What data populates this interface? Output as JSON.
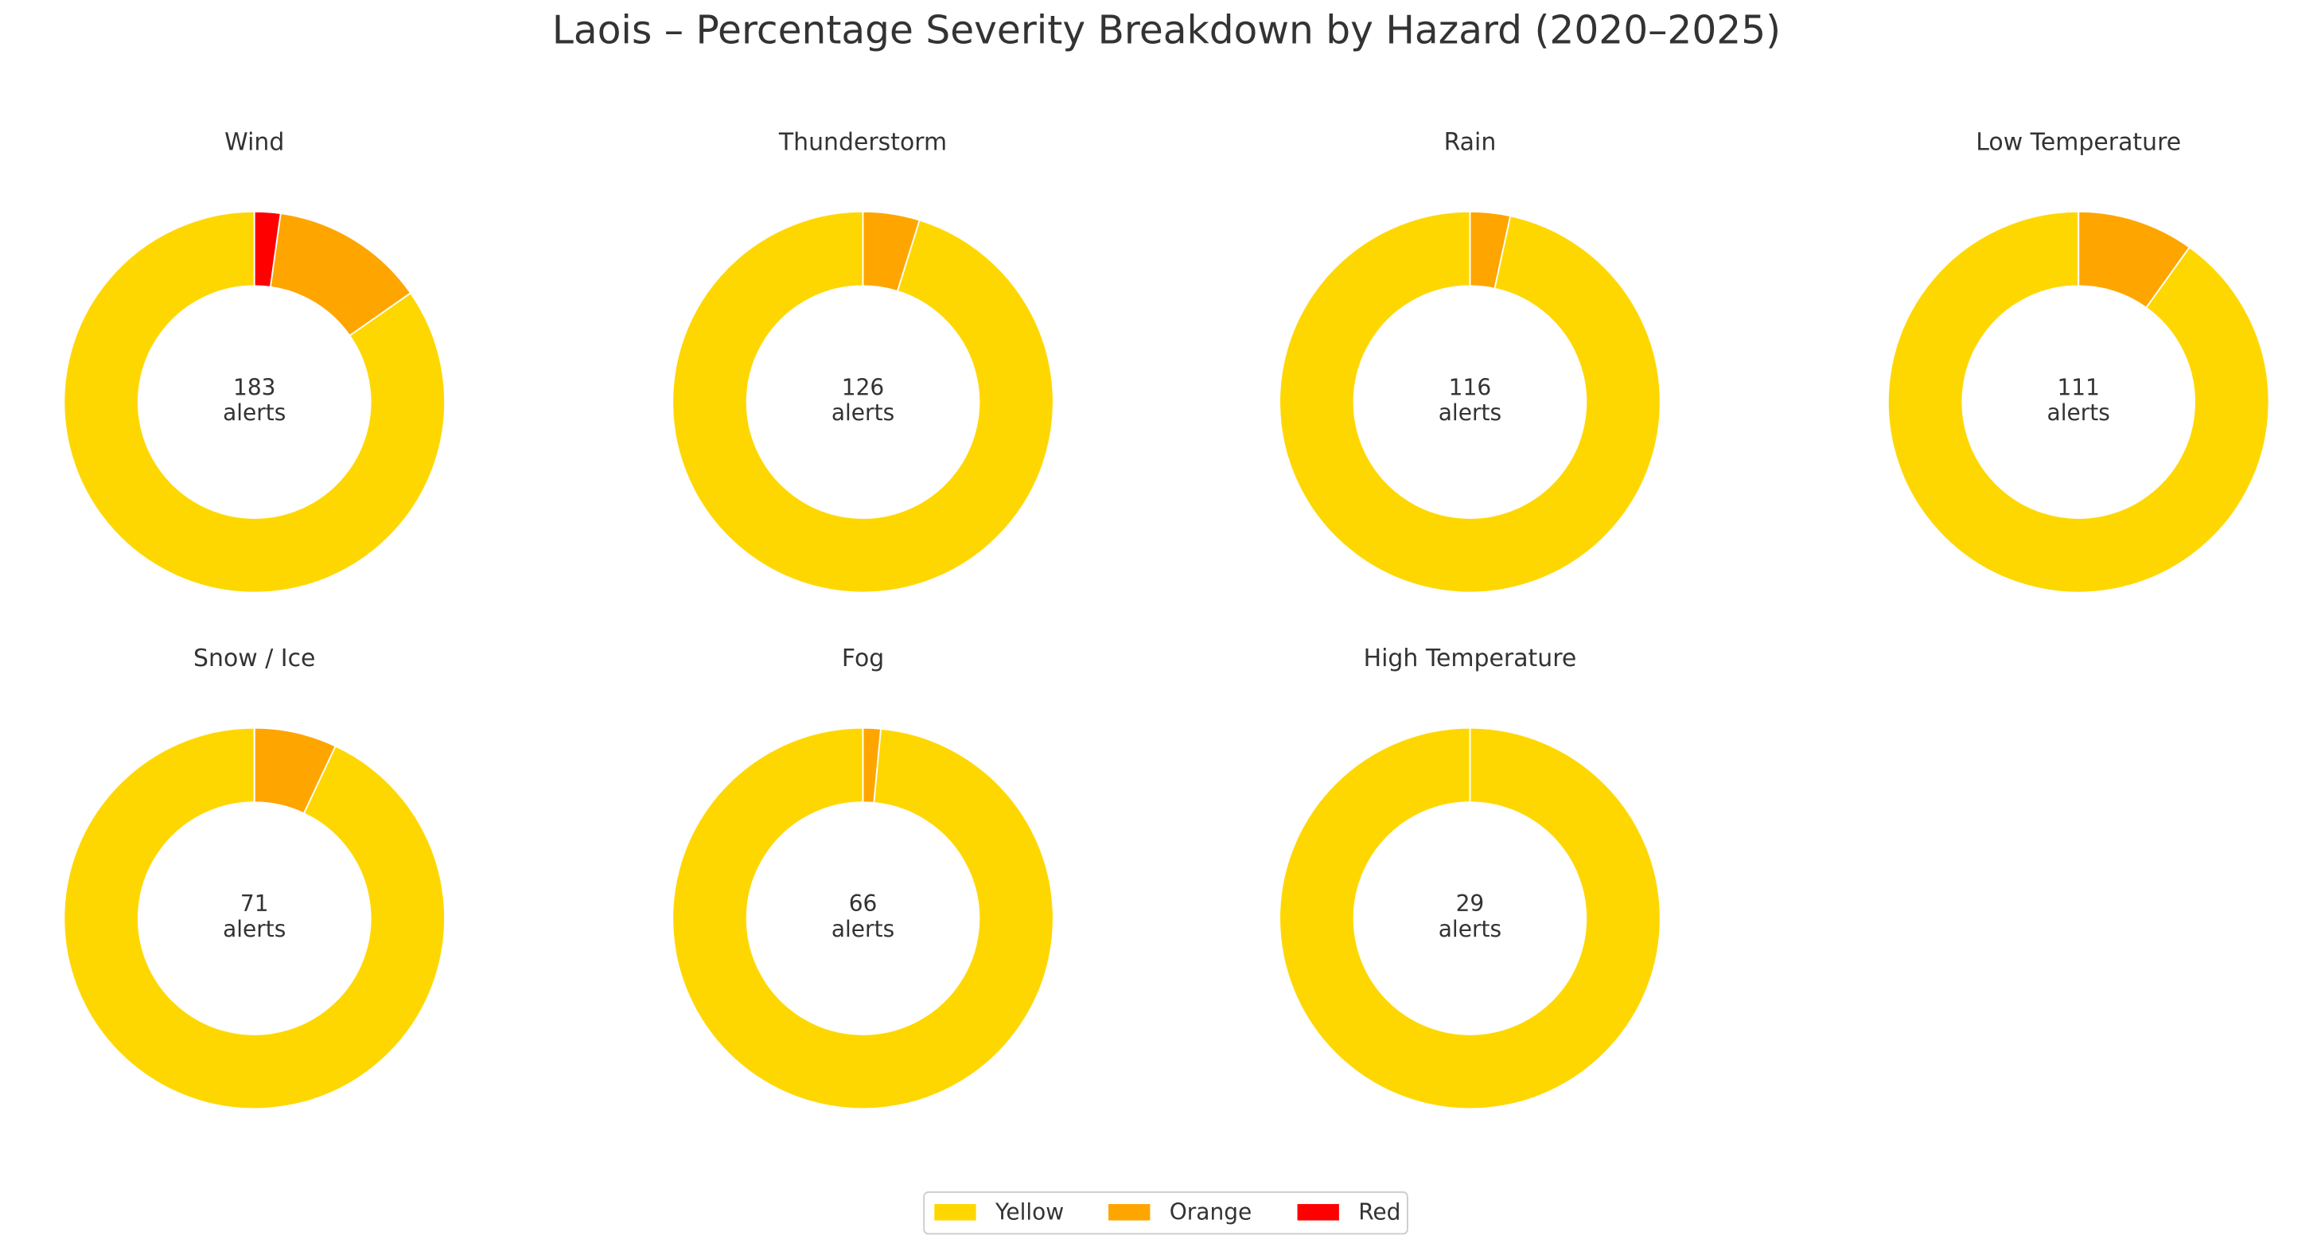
{
  "title": "Laois – Percentage Severity Breakdown by Hazard (2020–2025)",
  "chart_data": [
    {
      "type": "pie",
      "title": "Wind",
      "categories": [
        "Yellow",
        "Orange",
        "Red"
      ],
      "colors": [
        "#ffd700",
        "#ffa500",
        "#ff0000"
      ],
      "values": [
        84.7,
        13.1,
        2.2
      ],
      "total": 183,
      "total_label": "alerts"
    },
    {
      "type": "pie",
      "title": "Thunderstorm",
      "categories": [
        "Yellow",
        "Orange",
        "Red"
      ],
      "colors": [
        "#ffd700",
        "#ffa500",
        "#ff0000"
      ],
      "values": [
        95.2,
        4.8,
        0
      ],
      "total": 126,
      "total_label": "alerts"
    },
    {
      "type": "pie",
      "title": "Rain",
      "categories": [
        "Yellow",
        "Orange",
        "Red"
      ],
      "colors": [
        "#ffd700",
        "#ffa500",
        "#ff0000"
      ],
      "values": [
        96.6,
        3.4,
        0
      ],
      "total": 116,
      "total_label": "alerts"
    },
    {
      "type": "pie",
      "title": "Low Temperature",
      "categories": [
        "Yellow",
        "Orange",
        "Red"
      ],
      "colors": [
        "#ffd700",
        "#ffa500",
        "#ff0000"
      ],
      "values": [
        90.1,
        9.9,
        0
      ],
      "total": 111,
      "total_label": "alerts"
    },
    {
      "type": "pie",
      "title": "Snow / Ice",
      "categories": [
        "Yellow",
        "Orange",
        "Red"
      ],
      "colors": [
        "#ffd700",
        "#ffa500",
        "#ff0000"
      ],
      "values": [
        93.0,
        7.0,
        0
      ],
      "total": 71,
      "total_label": "alerts"
    },
    {
      "type": "pie",
      "title": "Fog",
      "categories": [
        "Yellow",
        "Orange",
        "Red"
      ],
      "colors": [
        "#ffd700",
        "#ffa500",
        "#ff0000"
      ],
      "values": [
        98.5,
        1.5,
        0
      ],
      "total": 66,
      "total_label": "alerts"
    },
    {
      "type": "pie",
      "title": "High Temperature",
      "categories": [
        "Yellow",
        "Orange",
        "Red"
      ],
      "colors": [
        "#ffd700",
        "#ffa500",
        "#ff0000"
      ],
      "values": [
        100,
        0,
        0
      ],
      "total": 29,
      "total_label": "alerts"
    }
  ]
}
